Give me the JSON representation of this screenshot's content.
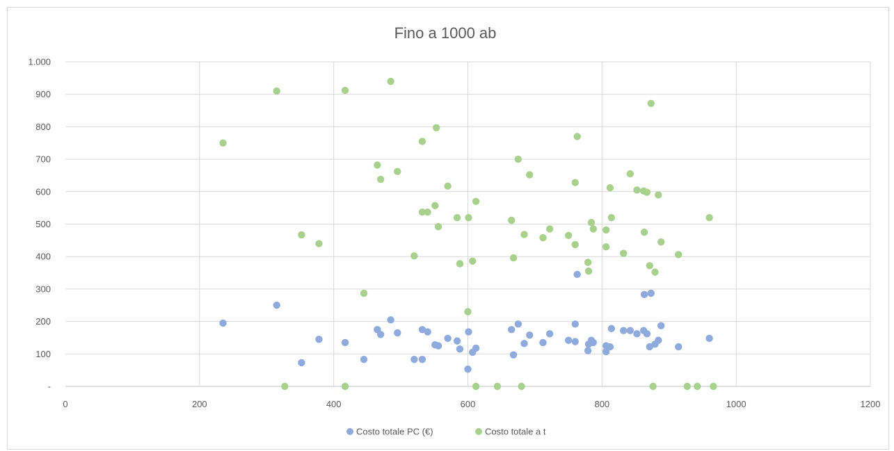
{
  "chart_data": {
    "type": "scatter",
    "title": "Fino a 1000 ab",
    "xlabel": "",
    "ylabel": "",
    "xlim": [
      0,
      1200
    ],
    "ylim": [
      0,
      1000
    ],
    "x_ticks": [
      0,
      200,
      400,
      600,
      800,
      1000,
      1200
    ],
    "x_tick_labels": [
      "0",
      "200",
      "400",
      "600",
      "800",
      "1000",
      "1200"
    ],
    "y_ticks": [
      0,
      100,
      200,
      300,
      400,
      500,
      600,
      700,
      800,
      900,
      1000
    ],
    "y_tick_labels": [
      "-",
      "100",
      "200",
      "300",
      "400",
      "500",
      "600",
      "700",
      "800",
      "900",
      "1.000"
    ],
    "grid": true,
    "legend_position": "bottom",
    "series": [
      {
        "name": "Costo totale PC (€)",
        "color": "#8faadc",
        "points": [
          [
            235,
            195
          ],
          [
            315,
            250
          ],
          [
            352,
            73
          ],
          [
            378,
            145
          ],
          [
            417,
            135
          ],
          [
            445,
            83
          ],
          [
            465,
            175
          ],
          [
            470,
            160
          ],
          [
            485,
            205
          ],
          [
            495,
            165
          ],
          [
            520,
            83
          ],
          [
            532,
            83
          ],
          [
            532,
            175
          ],
          [
            540,
            168
          ],
          [
            551,
            128
          ],
          [
            556,
            125
          ],
          [
            570,
            148
          ],
          [
            584,
            140
          ],
          [
            588,
            115
          ],
          [
            600,
            53
          ],
          [
            601,
            168
          ],
          [
            607,
            105
          ],
          [
            612,
            118
          ],
          [
            665,
            175
          ],
          [
            668,
            97
          ],
          [
            675,
            192
          ],
          [
            684,
            132
          ],
          [
            692,
            158
          ],
          [
            712,
            135
          ],
          [
            722,
            162
          ],
          [
            750,
            142
          ],
          [
            760,
            192
          ],
          [
            760,
            138
          ],
          [
            763,
            345
          ],
          [
            779,
            110
          ],
          [
            780,
            130
          ],
          [
            784,
            142
          ],
          [
            787,
            135
          ],
          [
            806,
            107
          ],
          [
            806,
            125
          ],
          [
            812,
            122
          ],
          [
            814,
            178
          ],
          [
            832,
            172
          ],
          [
            842,
            172
          ],
          [
            852,
            162
          ],
          [
            862,
            172
          ],
          [
            863,
            283
          ],
          [
            867,
            162
          ],
          [
            871,
            122
          ],
          [
            873,
            287
          ],
          [
            879,
            130
          ],
          [
            884,
            142
          ],
          [
            888,
            187
          ],
          [
            914,
            122
          ],
          [
            960,
            148
          ]
        ]
      },
      {
        "name": "Costo totale a t",
        "color": "#a9d18e",
        "points": [
          [
            235,
            750
          ],
          [
            315,
            910
          ],
          [
            327,
            0
          ],
          [
            352,
            467
          ],
          [
            378,
            440
          ],
          [
            417,
            912
          ],
          [
            417,
            0
          ],
          [
            445,
            287
          ],
          [
            465,
            682
          ],
          [
            470,
            638
          ],
          [
            485,
            940
          ],
          [
            495,
            662
          ],
          [
            520,
            402
          ],
          [
            532,
            755
          ],
          [
            532,
            537
          ],
          [
            540,
            537
          ],
          [
            551,
            557
          ],
          [
            553,
            797
          ],
          [
            556,
            492
          ],
          [
            570,
            617
          ],
          [
            584,
            520
          ],
          [
            588,
            378
          ],
          [
            600,
            230
          ],
          [
            601,
            520
          ],
          [
            607,
            386
          ],
          [
            612,
            570
          ],
          [
            612,
            0
          ],
          [
            644,
            0
          ],
          [
            665,
            512
          ],
          [
            668,
            396
          ],
          [
            675,
            700
          ],
          [
            680,
            0
          ],
          [
            684,
            468
          ],
          [
            692,
            652
          ],
          [
            712,
            458
          ],
          [
            722,
            485
          ],
          [
            750,
            465
          ],
          [
            760,
            628
          ],
          [
            760,
            437
          ],
          [
            763,
            770
          ],
          [
            779,
            382
          ],
          [
            780,
            355
          ],
          [
            784,
            505
          ],
          [
            787,
            485
          ],
          [
            806,
            482
          ],
          [
            806,
            430
          ],
          [
            812,
            612
          ],
          [
            814,
            520
          ],
          [
            832,
            410
          ],
          [
            842,
            655
          ],
          [
            852,
            605
          ],
          [
            862,
            602
          ],
          [
            863,
            475
          ],
          [
            867,
            598
          ],
          [
            871,
            372
          ],
          [
            873,
            872
          ],
          [
            876,
            0
          ],
          [
            879,
            352
          ],
          [
            884,
            590
          ],
          [
            888,
            445
          ],
          [
            914,
            406
          ],
          [
            927,
            0
          ],
          [
            942,
            0
          ],
          [
            960,
            520
          ],
          [
            966,
            0
          ]
        ]
      }
    ]
  }
}
